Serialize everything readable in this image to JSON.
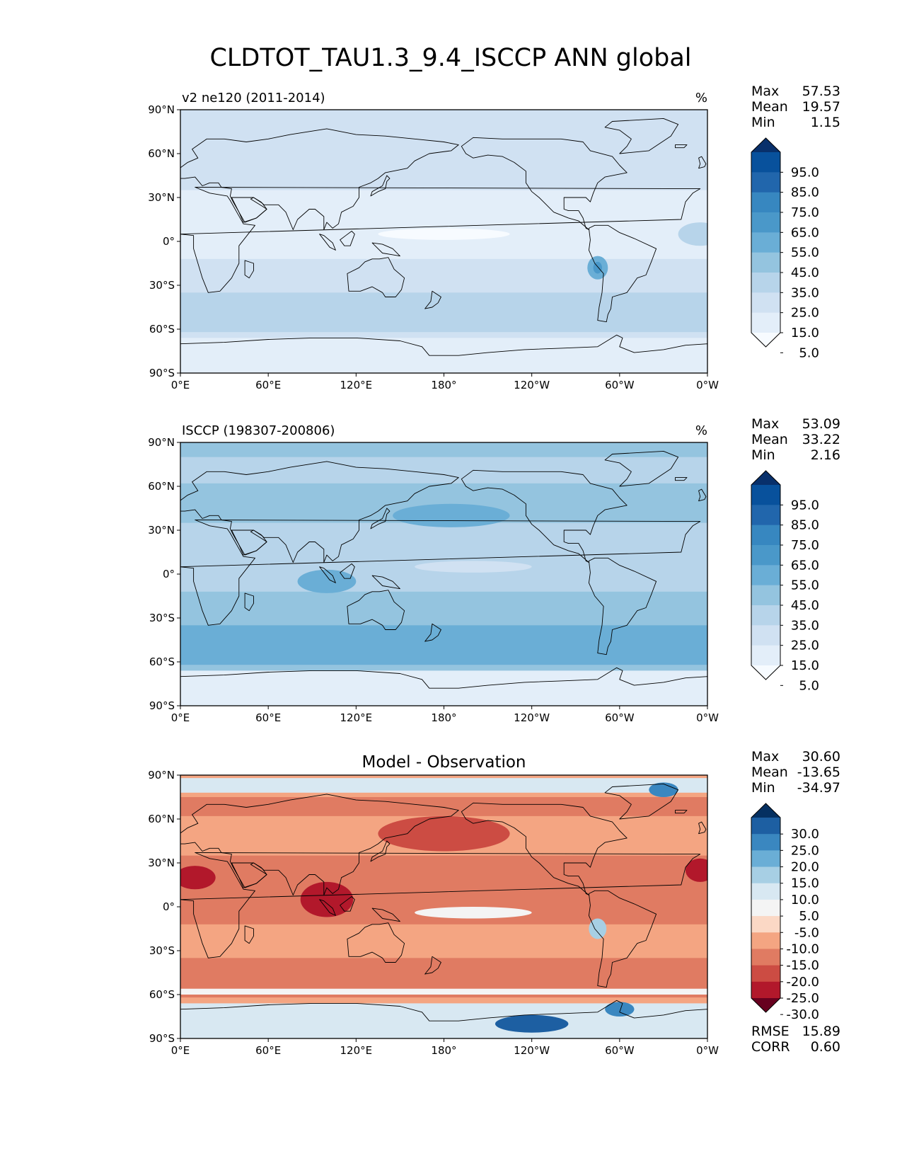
{
  "title": "CLDTOT_TAU1.3_9.4_ISCCP ANN global",
  "lat_ticks": [
    "90°N",
    "60°N",
    "30°N",
    "0°",
    "30°S",
    "60°S",
    "90°S"
  ],
  "lon_ticks": [
    "0°E",
    "60°E",
    "120°E",
    "180°",
    "120°W",
    "60°W",
    "0°W"
  ],
  "panels": [
    {
      "id": "test",
      "left_title": "v2 ne120 (2011-2014)",
      "center_title": "",
      "units": "%",
      "stats": [
        {
          "label": "Max",
          "value": "57.53"
        },
        {
          "label": "Mean",
          "value": "19.57"
        },
        {
          "label": "Min",
          "value": "1.15"
        }
      ],
      "colorbar": {
        "labels": [
          "95.0",
          "85.0",
          "75.0",
          "65.0",
          "55.0",
          "45.0",
          "35.0",
          "25.0",
          "15.0",
          "5.0"
        ],
        "colors": [
          "#08306b",
          "#08519c",
          "#2166ac",
          "#3787c0",
          "#4a98c9",
          "#6aaed6",
          "#94c4df",
          "#b7d4ea",
          "#d0e1f2",
          "#e3eef9",
          "#f7fbff"
        ]
      },
      "field": {
        "base": "#d0e1f2",
        "tropics": "#e3eef9",
        "southern_ocean": "#b7d4ea",
        "antarctic": "#e3eef9",
        "peru_maximum": "#6aaed6"
      }
    },
    {
      "id": "reference",
      "left_title": "ISCCP (198307-200806)",
      "center_title": "",
      "units": "%",
      "stats": [
        {
          "label": "Max",
          "value": "53.09"
        },
        {
          "label": "Mean",
          "value": "33.22"
        },
        {
          "label": "Min",
          "value": "2.16"
        }
      ],
      "colorbar": {
        "labels": [
          "95.0",
          "85.0",
          "75.0",
          "65.0",
          "55.0",
          "45.0",
          "35.0",
          "25.0",
          "15.0",
          "5.0"
        ],
        "colors": [
          "#08306b",
          "#08519c",
          "#2166ac",
          "#3787c0",
          "#4a98c9",
          "#6aaed6",
          "#94c4df",
          "#b7d4ea",
          "#d0e1f2",
          "#e3eef9",
          "#f7fbff"
        ]
      },
      "field": {
        "base": "#94c4df",
        "tropics": "#b7d4ea",
        "southern_ocean": "#6aaed6",
        "antarctic": "#e3eef9",
        "north_pacific": "#6aaed6"
      }
    },
    {
      "id": "diff",
      "left_title": "",
      "center_title": "Model - Observation",
      "units": "",
      "stats": [
        {
          "label": "Max",
          "value": "30.60"
        },
        {
          "label": "Mean",
          "value": "-13.65"
        },
        {
          "label": "Min",
          "value": "-34.97"
        }
      ],
      "extra_stats": [
        {
          "label": "RMSE",
          "value": "15.89"
        },
        {
          "label": "CORR",
          "value": "0.60"
        }
      ],
      "colorbar": {
        "labels": [
          "30.0",
          "25.0",
          "20.0",
          "15.0",
          "10.0",
          "5.0",
          "-5.0",
          "-10.0",
          "-15.0",
          "-20.0",
          "-25.0",
          "-30.0"
        ],
        "colors": [
          "#053061",
          "#1d5fa2",
          "#3a87c0",
          "#6aaed6",
          "#a7cfe4",
          "#d8e8f2",
          "#f4f4f4",
          "#fbd8c5",
          "#f4a582",
          "#e07b62",
          "#cc4c43",
          "#b2182b",
          "#67001f"
        ]
      },
      "field": {
        "base": "#f4a582",
        "tropics": "#e07b62",
        "southern_ocean": "#e07b62",
        "antarctic": "#d8e8f2",
        "east_pacific": "#f4f4f4",
        "warm_pool": "#b2182b"
      }
    }
  ]
}
